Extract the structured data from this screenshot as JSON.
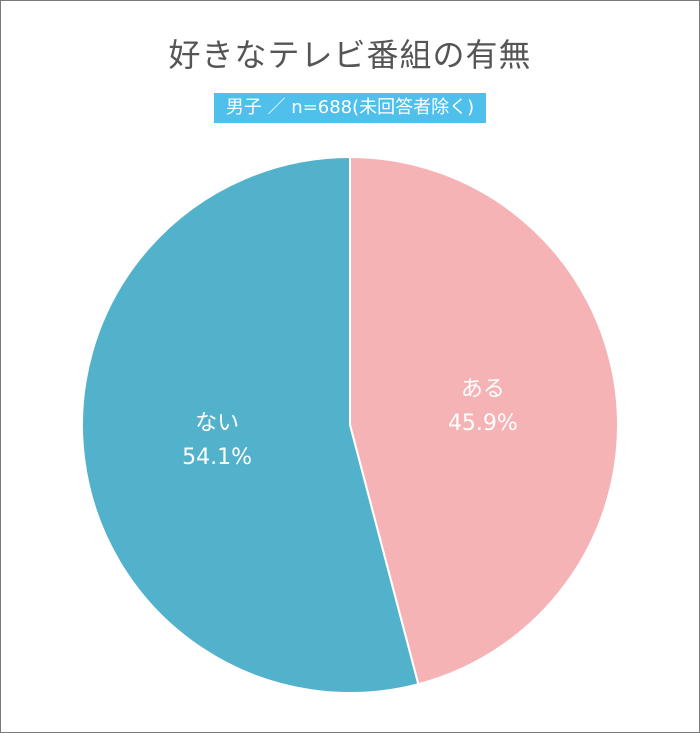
{
  "chart_data": {
    "type": "pie",
    "title": "好きなテレビ番組の有無",
    "subtitle": "男子 ／ n=688(未回答者除く)",
    "slices": [
      {
        "label": "ある",
        "value": 45.9,
        "value_label": "45.9%",
        "color": "#f5b3b5"
      },
      {
        "label": "ない",
        "value": 54.1,
        "value_label": "54.1%",
        "color": "#52b2cc"
      }
    ],
    "start": "12 o'clock",
    "direction": "clockwise"
  },
  "colors": {
    "title_text": "#555555",
    "subtitle_background": "#4fbfec",
    "slice_separator": "#ffffff"
  }
}
